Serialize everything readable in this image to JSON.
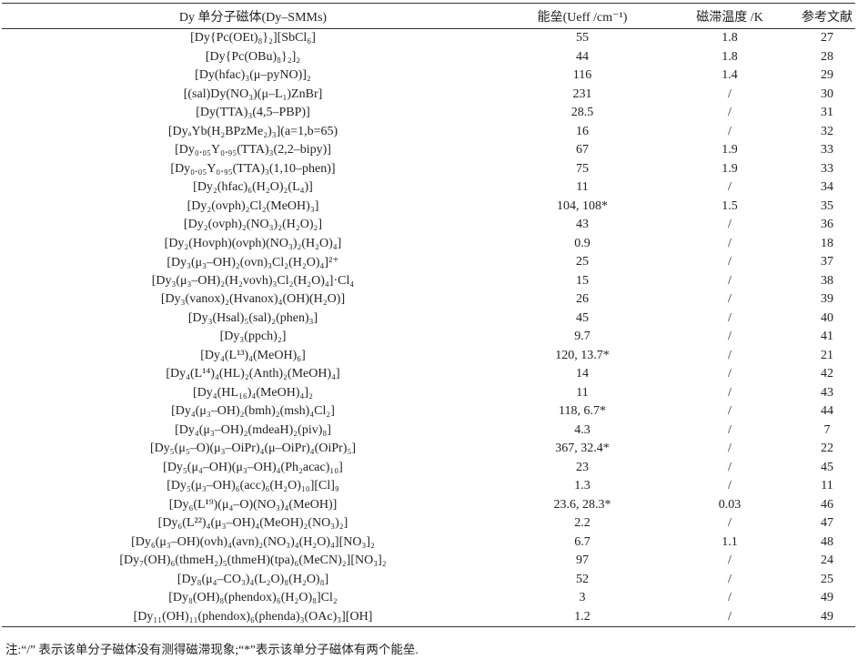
{
  "table": {
    "header": [
      "Dy 单分子磁体(Dy–SMMs)",
      "能垒(Ueff /cm⁻¹)",
      "磁滞温度 /K",
      "参考文献"
    ],
    "rows": [
      [
        "[Dy{Pc(OEt)₈}₂][SbCl₆]",
        "55",
        "1.8",
        "27"
      ],
      [
        "[Dy{Pc(OBu)₈}₂]₂",
        "44",
        "1.8",
        "28"
      ],
      [
        "[Dy(hfac)₃(μ–pyNO)]₂",
        "116",
        "1.4",
        "29"
      ],
      [
        "[(sal)Dy(NO₃)(μ–L₁)ZnBr]",
        "231",
        "/",
        "30"
      ],
      [
        "[Dy(TTA)₃(4,5–PBP)]",
        "28.5",
        "/",
        "31"
      ],
      [
        "[DyₐYb(H₂BPzMe₂)₃](a=1,b=65)",
        "16",
        "/",
        "32"
      ],
      [
        "[Dy₀.₀₅Y₀.₉₅(TTA)₃(2,2–bipy)]",
        "67",
        "1.9",
        "33"
      ],
      [
        "[Dy₀.₀₅Y₀.₉₅(TTA)₃(1,10–phen)]",
        "75",
        "1.9",
        "33"
      ],
      [
        "[Dy₂(hfac)₆(H₂O)₂(L₄)]",
        "11",
        "/",
        "34"
      ],
      [
        "[Dy₂(ovph)₂Cl₂(MeOH)₃]",
        "104, 108*",
        "1.5",
        "35"
      ],
      [
        "[Dy₂(ovph)₂(NO₃)₂(H₂O)₂]",
        "43",
        "/",
        "36"
      ],
      [
        "[Dy₂(Hovph)(ovph)(NO₃)₂(H₂O)₄]",
        "0.9",
        "/",
        "18"
      ],
      [
        "[Dy₃(μ₃–OH)₂(ovn)₃Cl₂(H₂O)₄]²⁺",
        "25",
        "/",
        "37"
      ],
      [
        "[Dy₃(μ₃–OH)₂(H₂vovh)₃Cl₂(H₂O)₄]·Cl₄",
        "15",
        "/",
        "38"
      ],
      [
        "[Dy₃(vanox)₂(Hvanox)₄(OH)(H₂O)]",
        "26",
        "/",
        "39"
      ],
      [
        "[Dy₃(Hsal)₅(sal)₂(phen)₃]",
        "45",
        "/",
        "40"
      ],
      [
        "[Dy₃(ppch)₂]",
        "9.7",
        "/",
        "41"
      ],
      [
        "[Dy₄(L¹³)₄(MeOH)₆]",
        "120, 13.7*",
        "/",
        "21"
      ],
      [
        "[Dy₄(L¹⁴)₄(HL)₂(Anth)₂(MeOH)₄]",
        "14",
        "/",
        "42"
      ],
      [
        "[Dy₄(HL₁₆)₄(MeOH)₄]₂",
        "11",
        "/",
        "43"
      ],
      [
        "[Dy₄(μ₃–OH)₂(bmh)₂(msh)₄Cl₂]",
        "118, 6.7*",
        "/",
        "44"
      ],
      [
        "[Dy₄(μ₃–OH)₂(mdeaH)₂(piv)₈]",
        "4.3",
        "/",
        "7"
      ],
      [
        "[Dy₅(μ₅–O)(μ₃–OiPr)₄(μ–OiPr)₄(OiPr)₅]",
        "367, 32.4*",
        "/",
        "22"
      ],
      [
        "[Dy₅(μ₄–OH)(μ₃–OH)₄(Ph₂acac)₁₀]",
        "23",
        "/",
        "45"
      ],
      [
        "[Dy₅(μ₃–OH)₆(acc)₆(H₂O)₁₀][Cl]₉",
        "1.3",
        "/",
        "11"
      ],
      [
        "[Dy₆(L¹⁹)(μ₄–O)(NO₃)₄(MeOH)]",
        "23.6, 28.3*",
        "0.03",
        "46"
      ],
      [
        "[Dy₆(L²²)₄(μ₃–OH)₄(MeOH)₂(NO₃)₂]",
        "2.2",
        "/",
        "47"
      ],
      [
        "[Dy₆(μ₃–OH)(ovh)₄(avn)₂(NO₃)₄(H₂O)₄][NO₃]₂",
        "6.7",
        "1.1",
        "48"
      ],
      [
        "[Dy₇(OH)₆(thmeH₂)₅(thmeH)(tpa)₆(MeCN)₂][NO₃]₂",
        "97",
        "/",
        "24"
      ],
      [
        "[Dy₈(μ₄–CO₃)₄(L₂O)₈(H₂O)₈]",
        "52",
        "/",
        "25"
      ],
      [
        "[Dy₈(OH)₈(phendox)₆(H₂O)₈]Cl₂",
        "3",
        "/",
        "49"
      ],
      [
        "[Dy₁₁(OH)₁₁(phendox)₆(phenda)₃(OAc)₃][OH]",
        "1.2",
        "/",
        "49"
      ]
    ],
    "note": "注:“/” 表示该单分子磁体没有测得磁滞现象;“*”表示该单分子磁体有两个能垒."
  }
}
